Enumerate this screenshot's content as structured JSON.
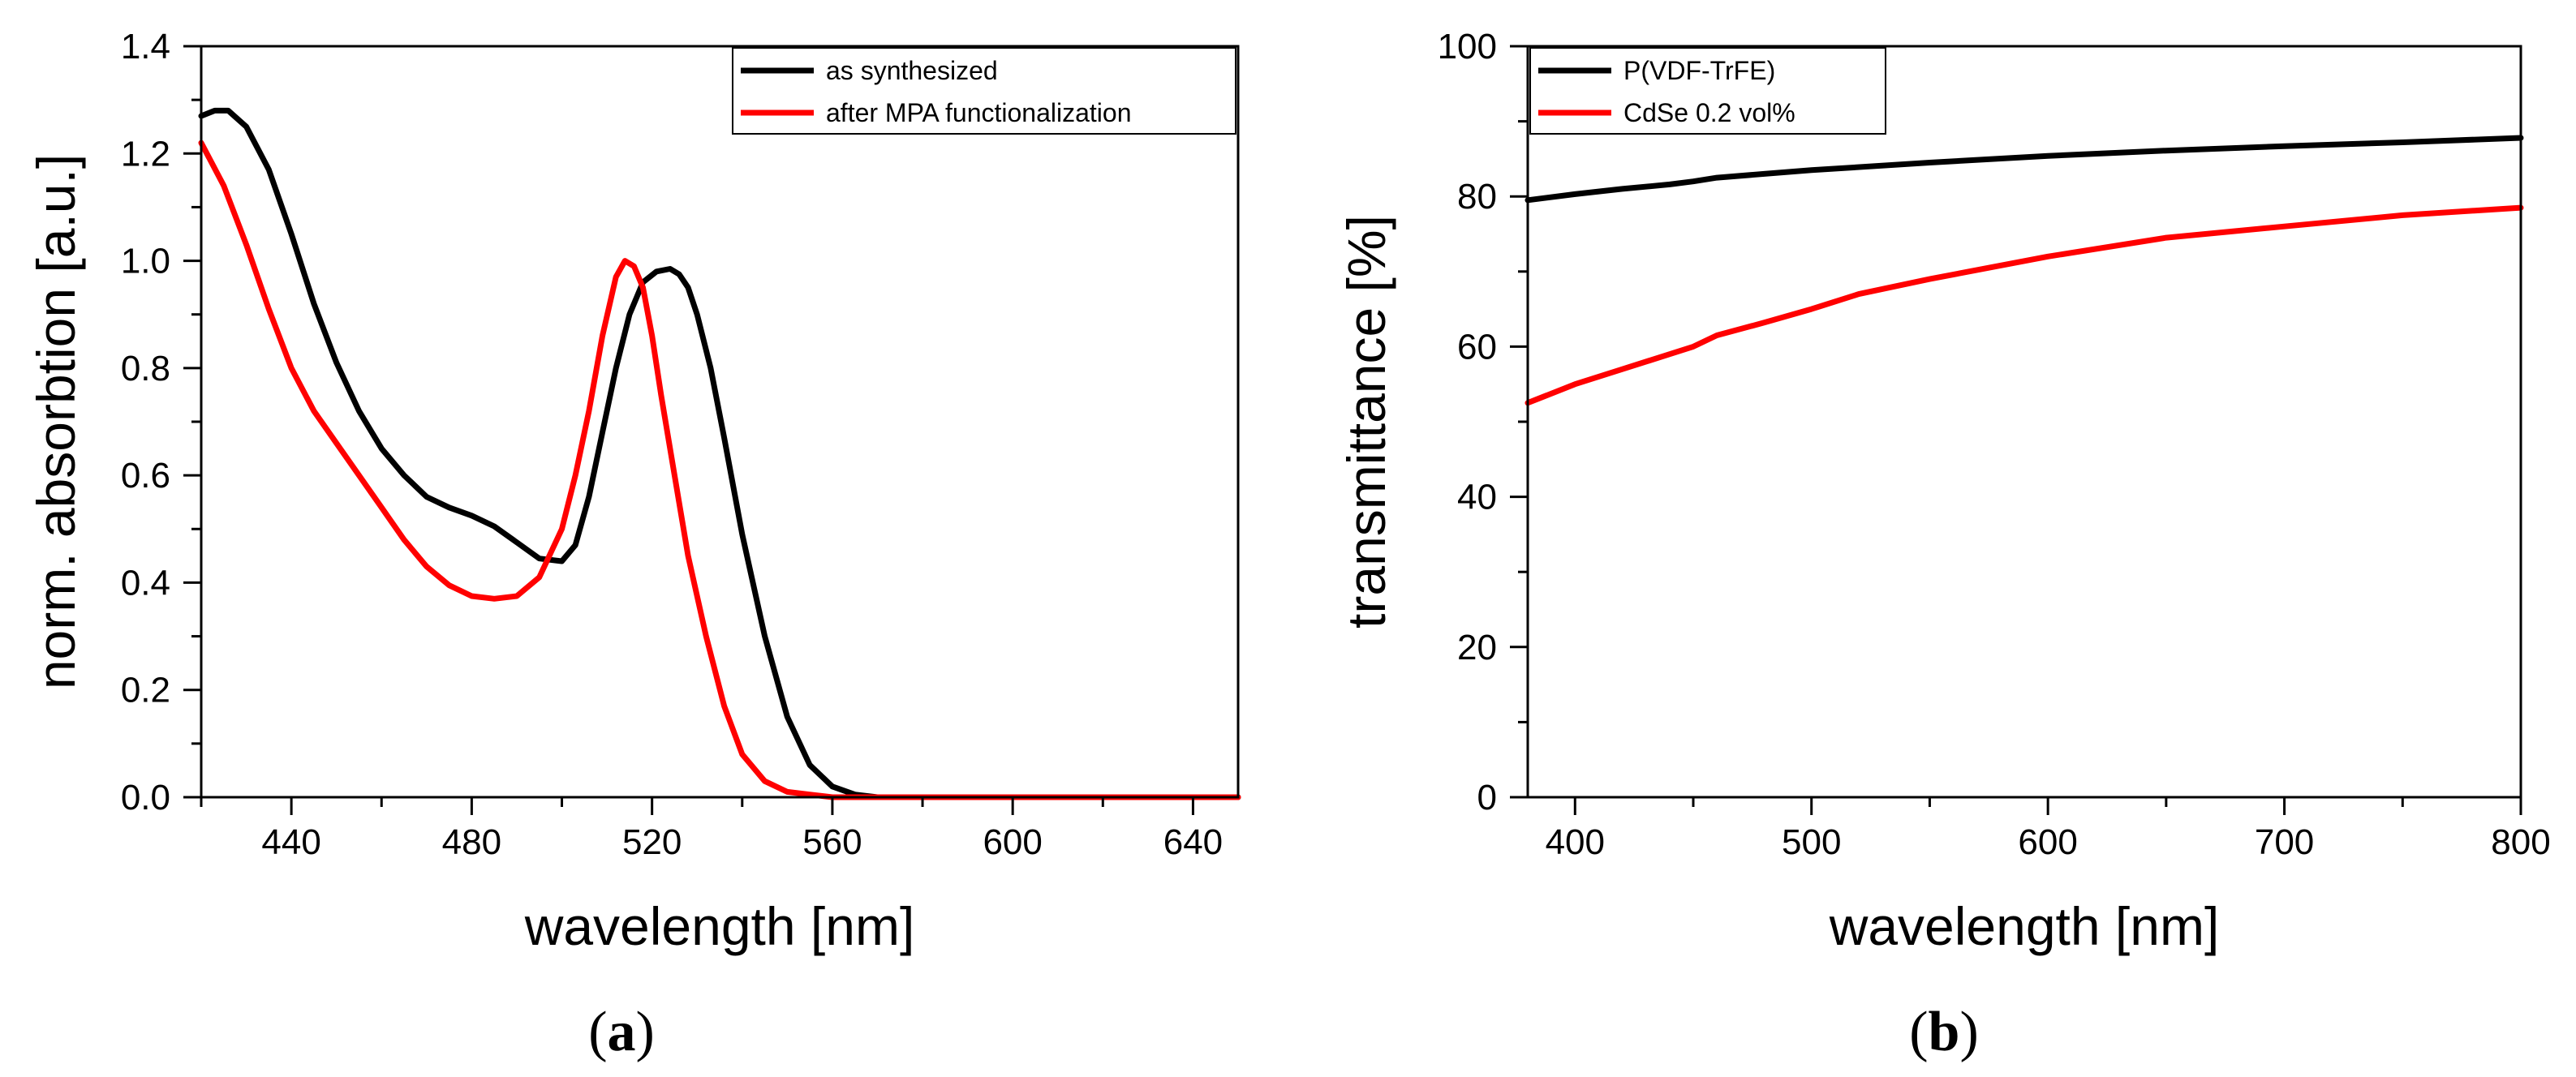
{
  "chart_data": [
    {
      "type": "line",
      "panel": "a",
      "xlabel": "wavelength [nm]",
      "ylabel": "norm. absorbtion [a.u.]",
      "xlim": [
        420,
        650
      ],
      "ylim": [
        0.0,
        1.4
      ],
      "xticks": [
        440,
        480,
        520,
        560,
        600,
        640
      ],
      "xtick_labels": [
        "440",
        "480",
        "520",
        "560",
        "600",
        "640"
      ],
      "yticks": [
        0.0,
        0.2,
        0.4,
        0.6,
        0.8,
        1.0,
        1.2,
        1.4
      ],
      "ytick_labels": [
        "0.0",
        "0.2",
        "0.4",
        "0.6",
        "0.8",
        "1.0",
        "1.2",
        "1.4"
      ],
      "legend_position": "top-right",
      "series": [
        {
          "name": "as synthesized",
          "color": "#000000",
          "x": [
            420,
            423,
            426,
            430,
            435,
            440,
            445,
            450,
            455,
            460,
            465,
            470,
            475,
            480,
            485,
            490,
            495,
            500,
            503,
            506,
            509,
            512,
            515,
            518,
            521,
            524,
            526,
            528,
            530,
            533,
            536,
            540,
            545,
            550,
            555,
            560,
            565,
            570,
            580,
            600,
            620,
            650
          ],
          "y": [
            1.27,
            1.28,
            1.28,
            1.25,
            1.17,
            1.05,
            0.92,
            0.81,
            0.72,
            0.65,
            0.6,
            0.56,
            0.54,
            0.525,
            0.505,
            0.475,
            0.445,
            0.44,
            0.47,
            0.56,
            0.68,
            0.8,
            0.9,
            0.96,
            0.98,
            0.985,
            0.975,
            0.95,
            0.9,
            0.8,
            0.67,
            0.49,
            0.3,
            0.15,
            0.06,
            0.02,
            0.005,
            0.0,
            0.0,
            0.0,
            0.0,
            0.0
          ]
        },
        {
          "name": "after MPA functionalization",
          "color": "#ff0000",
          "x": [
            420,
            425,
            430,
            435,
            440,
            445,
            450,
            455,
            460,
            465,
            470,
            475,
            480,
            485,
            490,
            495,
            500,
            503,
            506,
            509,
            512,
            514,
            516,
            518,
            520,
            522,
            525,
            528,
            532,
            536,
            540,
            545,
            550,
            555,
            560,
            565,
            570,
            580,
            600,
            650
          ],
          "y": [
            1.22,
            1.14,
            1.03,
            0.91,
            0.8,
            0.72,
            0.66,
            0.6,
            0.54,
            0.48,
            0.43,
            0.395,
            0.375,
            0.37,
            0.375,
            0.41,
            0.5,
            0.6,
            0.72,
            0.86,
            0.97,
            1.0,
            0.99,
            0.95,
            0.86,
            0.75,
            0.6,
            0.45,
            0.3,
            0.17,
            0.08,
            0.03,
            0.01,
            0.005,
            0.0,
            0.0,
            0.0,
            0.0,
            0.0,
            0.0
          ]
        }
      ]
    },
    {
      "type": "line",
      "panel": "b",
      "xlabel": "wavelength [nm]",
      "ylabel": "transmittance [%]",
      "xlim": [
        380,
        800
      ],
      "ylim": [
        0,
        100
      ],
      "xticks": [
        400,
        500,
        600,
        700,
        800
      ],
      "xtick_labels": [
        "400",
        "500",
        "600",
        "700",
        "800"
      ],
      "yticks": [
        0,
        20,
        40,
        60,
        80,
        100
      ],
      "ytick_labels": [
        "0",
        "20",
        "40",
        "60",
        "80",
        "100"
      ],
      "legend_position": "top-left",
      "series": [
        {
          "name": "P(VDF-TrFE)",
          "color": "#000000",
          "x": [
            380,
            400,
            420,
            440,
            450,
            460,
            480,
            500,
            550,
            600,
            650,
            700,
            750,
            800
          ],
          "y": [
            79.5,
            80.3,
            81.0,
            81.6,
            82.0,
            82.5,
            83.0,
            83.5,
            84.5,
            85.4,
            86.1,
            86.7,
            87.2,
            87.8
          ]
        },
        {
          "name": "CdSe 0.2 vol%",
          "color": "#ff0000",
          "x": [
            380,
            400,
            420,
            440,
            450,
            460,
            480,
            500,
            520,
            550,
            600,
            650,
            700,
            750,
            800
          ],
          "y": [
            52.5,
            55.0,
            57.0,
            59.0,
            60.0,
            61.5,
            63.2,
            65.0,
            67.0,
            69.0,
            72.0,
            74.5,
            76.0,
            77.5,
            78.5
          ]
        }
      ]
    }
  ],
  "panel_labels": [
    {
      "open": "(",
      "letter": "a",
      "close": ")"
    },
    {
      "open": "(",
      "letter": "b",
      "close": ")"
    }
  ]
}
